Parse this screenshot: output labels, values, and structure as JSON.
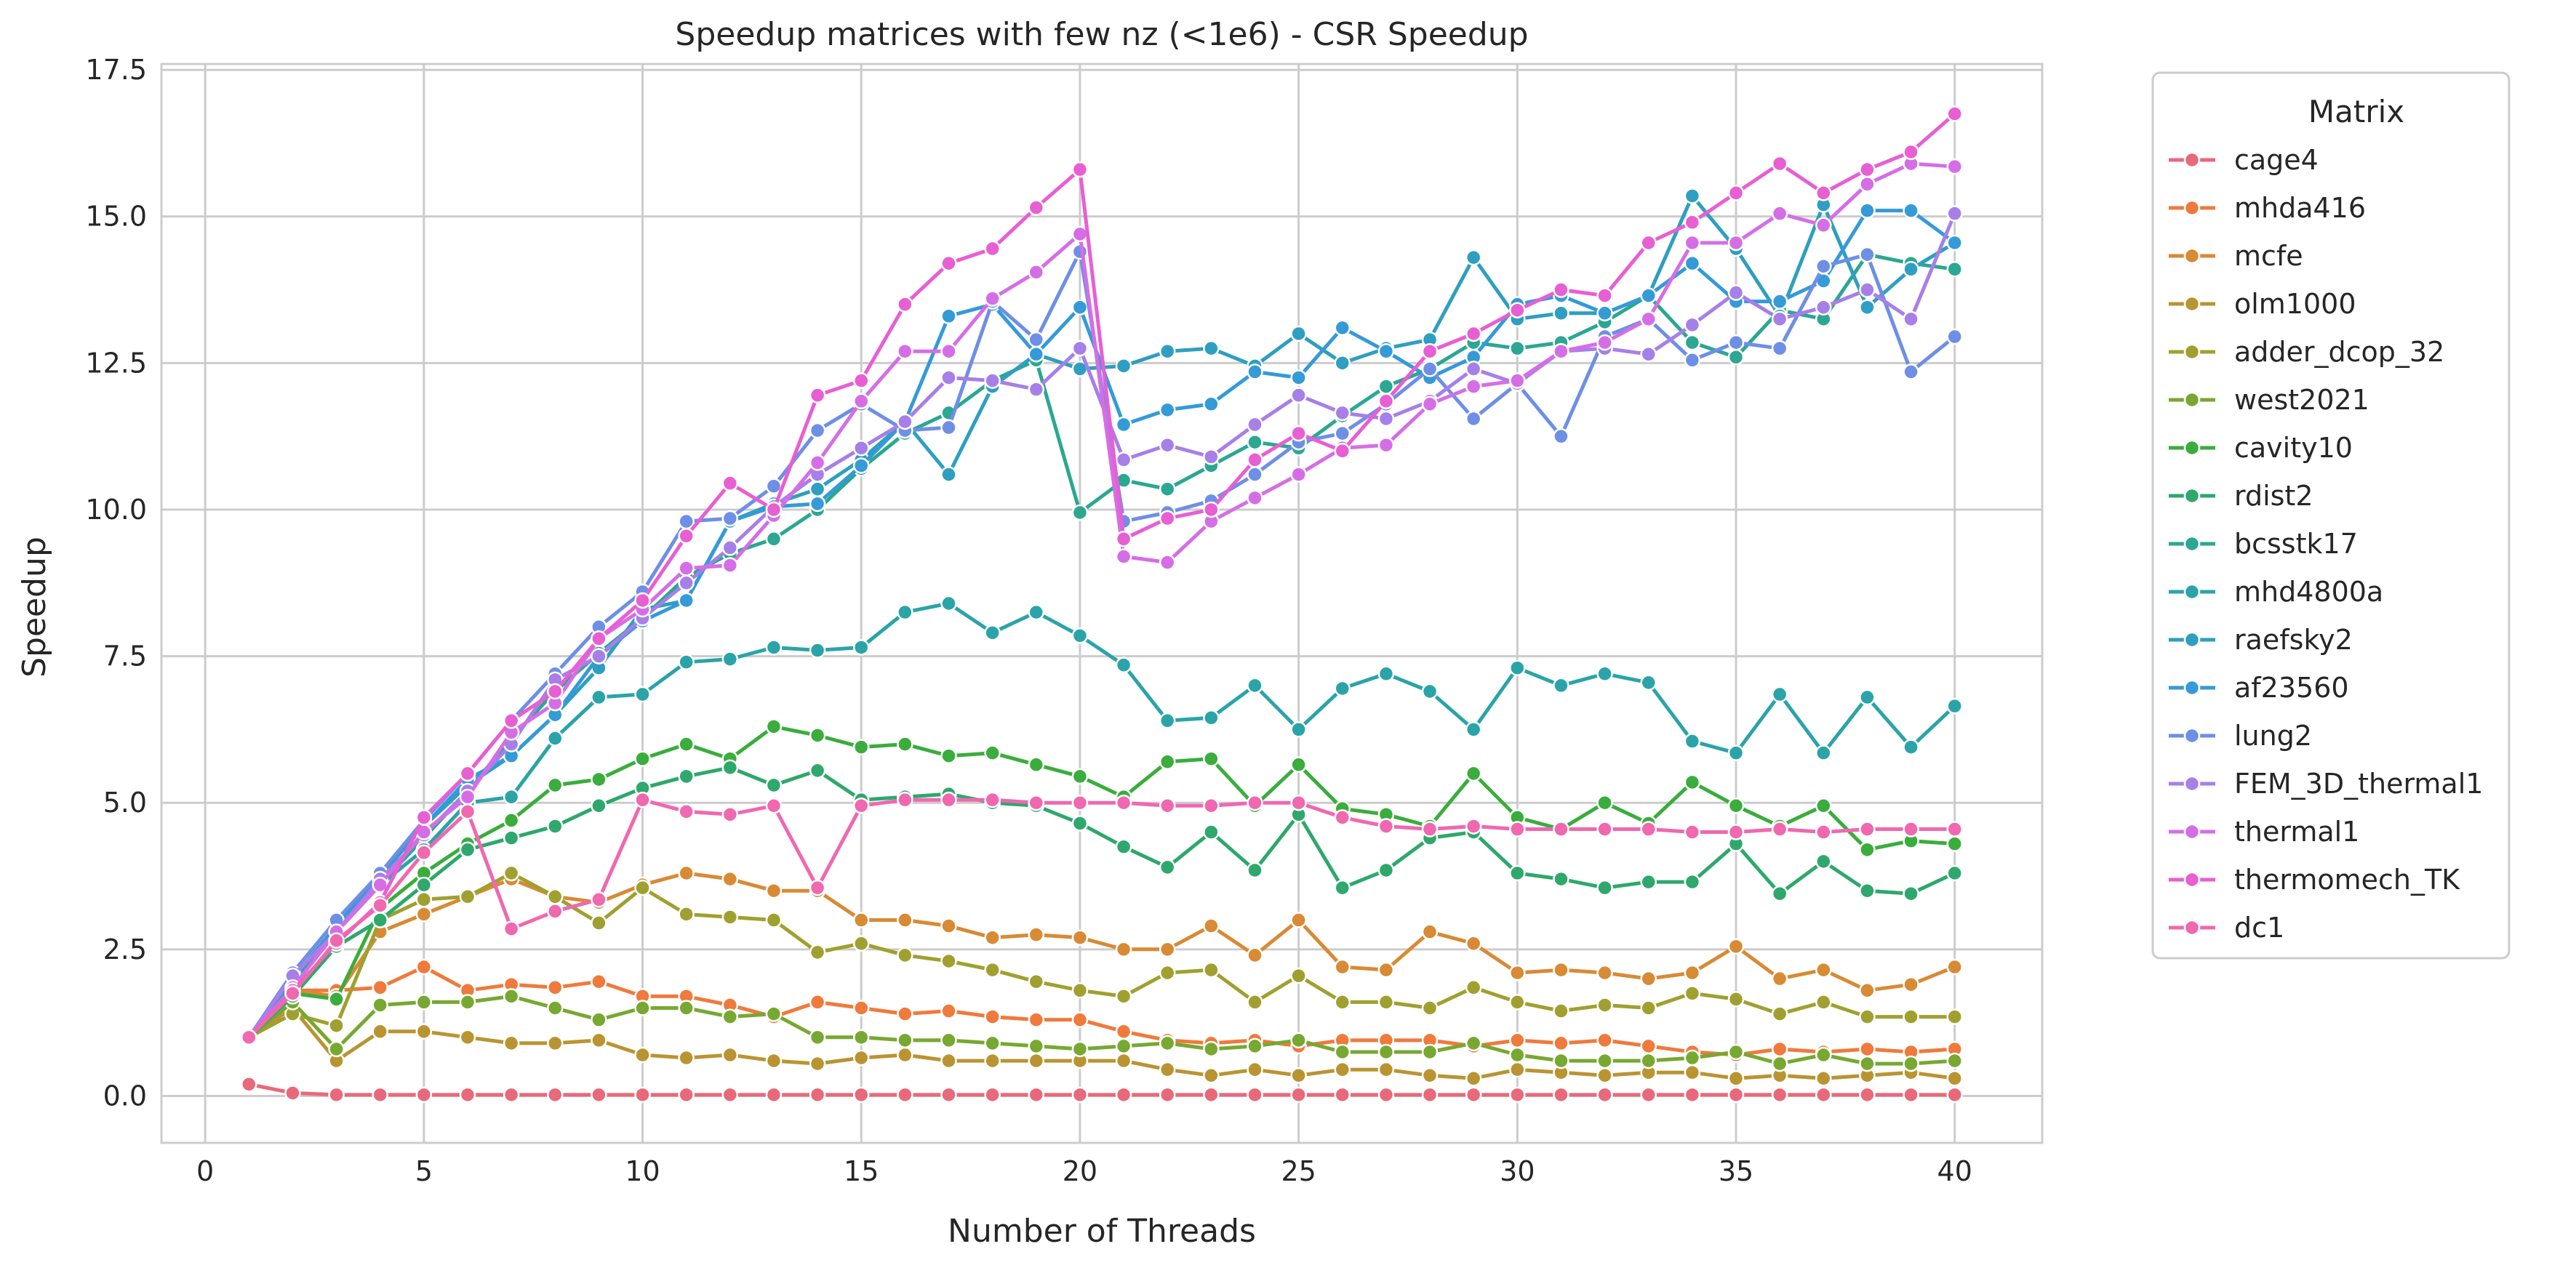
{
  "chart_data": {
    "type": "line",
    "title": "Speedup matrices with few nz (<1e6)  - CSR Speedup",
    "xlabel": "Number of Threads",
    "ylabel": "Speedup",
    "xlim": [
      -1.0,
      42.0
    ],
    "ylim": [
      -0.8,
      17.6
    ],
    "xticks": [
      0,
      5,
      10,
      15,
      20,
      25,
      30,
      35,
      40
    ],
    "xtick_labels": [
      "0",
      "5",
      "10",
      "15",
      "20",
      "25",
      "30",
      "35",
      "40"
    ],
    "yticks": [
      0,
      2.5,
      5,
      7.5,
      10,
      12.5,
      15,
      17.5
    ],
    "ytick_labels": [
      "0.0",
      "2.5",
      "5.0",
      "7.5",
      "10.0",
      "12.5",
      "15.0",
      "17.5"
    ],
    "grid": true,
    "legend": {
      "title": "Matrix",
      "placement": "outside-right"
    },
    "x": [
      1,
      2,
      3,
      4,
      5,
      6,
      7,
      8,
      9,
      10,
      11,
      12,
      13,
      14,
      15,
      16,
      17,
      18,
      19,
      20,
      21,
      22,
      23,
      24,
      25,
      26,
      27,
      28,
      29,
      30,
      31,
      32,
      33,
      34,
      35,
      36,
      37,
      38,
      39,
      40
    ],
    "series": [
      {
        "name": "cage4",
        "color": "#e8697a",
        "values": [
          0.2,
          0.05,
          0.02,
          0.02,
          0.02,
          0.02,
          0.02,
          0.02,
          0.02,
          0.02,
          0.02,
          0.02,
          0.02,
          0.02,
          0.02,
          0.02,
          0.02,
          0.02,
          0.02,
          0.02,
          0.02,
          0.02,
          0.02,
          0.02,
          0.02,
          0.02,
          0.02,
          0.02,
          0.02,
          0.02,
          0.02,
          0.02,
          0.02,
          0.02,
          0.02,
          0.02,
          0.02,
          0.02,
          0.02,
          0.02
        ]
      },
      {
        "name": "mhda416",
        "color": "#ef7a3c",
        "values": [
          1.0,
          1.8,
          1.8,
          1.85,
          2.2,
          1.8,
          1.9,
          1.85,
          1.95,
          1.7,
          1.7,
          1.55,
          1.35,
          1.6,
          1.5,
          1.4,
          1.45,
          1.35,
          1.3,
          1.3,
          1.1,
          0.95,
          0.9,
          0.95,
          0.85,
          0.95,
          0.95,
          0.95,
          0.85,
          0.95,
          0.9,
          0.95,
          0.85,
          0.75,
          0.7,
          0.8,
          0.75,
          0.8,
          0.75,
          0.8
        ]
      },
      {
        "name": "mcfe",
        "color": "#d88a34",
        "values": [
          1.0,
          1.8,
          1.7,
          2.8,
          3.1,
          3.4,
          3.7,
          3.4,
          3.3,
          3.6,
          3.8,
          3.7,
          3.5,
          3.5,
          3.0,
          3.0,
          2.9,
          2.7,
          2.75,
          2.7,
          2.5,
          2.5,
          2.9,
          2.4,
          3.0,
          2.2,
          2.15,
          2.8,
          2.6,
          2.1,
          2.15,
          2.1,
          2.0,
          2.1,
          2.55,
          2.0,
          2.15,
          1.8,
          1.9,
          2.2
        ]
      },
      {
        "name": "olm1000",
        "color": "#b99431",
        "values": [
          1.0,
          1.5,
          0.6,
          1.1,
          1.1,
          1.0,
          0.9,
          0.9,
          0.95,
          0.7,
          0.65,
          0.7,
          0.6,
          0.55,
          0.65,
          0.7,
          0.6,
          0.6,
          0.6,
          0.6,
          0.6,
          0.45,
          0.35,
          0.45,
          0.35,
          0.45,
          0.45,
          0.35,
          0.3,
          0.45,
          0.4,
          0.35,
          0.4,
          0.4,
          0.3,
          0.35,
          0.3,
          0.35,
          0.4,
          0.3
        ]
      },
      {
        "name": "adder_dcop_32",
        "color": "#a0a030",
        "values": [
          1.0,
          1.4,
          1.2,
          3.0,
          3.35,
          3.4,
          3.8,
          3.4,
          2.95,
          3.55,
          3.1,
          3.05,
          3.0,
          2.45,
          2.6,
          2.4,
          2.3,
          2.15,
          1.95,
          1.8,
          1.7,
          2.1,
          2.15,
          1.6,
          2.05,
          1.6,
          1.6,
          1.5,
          1.85,
          1.6,
          1.45,
          1.55,
          1.5,
          1.75,
          1.65,
          1.4,
          1.6,
          1.35,
          1.35,
          1.35
        ]
      },
      {
        "name": "west2021",
        "color": "#77a831",
        "values": [
          1.0,
          1.6,
          0.8,
          1.55,
          1.6,
          1.6,
          1.7,
          1.5,
          1.3,
          1.5,
          1.5,
          1.35,
          1.4,
          1.0,
          1.0,
          0.95,
          0.95,
          0.9,
          0.85,
          0.8,
          0.85,
          0.9,
          0.8,
          0.85,
          0.95,
          0.75,
          0.75,
          0.75,
          0.9,
          0.7,
          0.6,
          0.6,
          0.6,
          0.65,
          0.75,
          0.55,
          0.7,
          0.55,
          0.55,
          0.6
        ]
      },
      {
        "name": "cavity10",
        "color": "#3aad3d",
        "values": [
          1.0,
          1.75,
          1.65,
          3.2,
          3.8,
          4.3,
          4.7,
          5.3,
          5.4,
          5.75,
          6.0,
          5.75,
          6.3,
          6.15,
          5.95,
          6.0,
          5.8,
          5.85,
          5.65,
          5.45,
          5.1,
          5.7,
          5.75,
          4.95,
          5.65,
          4.9,
          4.8,
          4.6,
          5.5,
          4.75,
          4.55,
          5.0,
          4.65,
          5.35,
          4.95,
          4.6,
          4.95,
          4.2,
          4.35,
          4.3
        ]
      },
      {
        "name": "rdist2",
        "color": "#2ea86c",
        "values": [
          1.0,
          1.7,
          2.55,
          3.0,
          3.6,
          4.2,
          4.4,
          4.6,
          4.95,
          5.25,
          5.45,
          5.6,
          5.3,
          5.55,
          5.05,
          5.1,
          5.15,
          5.0,
          4.95,
          4.65,
          4.25,
          3.9,
          4.5,
          3.85,
          4.8,
          3.55,
          3.85,
          4.4,
          4.5,
          3.8,
          3.7,
          3.55,
          3.65,
          3.65,
          4.3,
          3.45,
          4.0,
          3.5,
          3.45,
          3.8
        ]
      },
      {
        "name": "bcsstk17",
        "color": "#2ba792",
        "values": [
          1.0,
          1.9,
          2.8,
          3.6,
          4.4,
          5.2,
          6.1,
          6.9,
          7.55,
          8.15,
          8.85,
          9.25,
          9.5,
          10.0,
          10.7,
          11.3,
          11.65,
          12.2,
          12.55,
          9.95,
          10.5,
          10.35,
          10.75,
          11.15,
          11.05,
          11.6,
          12.1,
          12.4,
          12.85,
          12.75,
          12.85,
          13.2,
          13.65,
          12.85,
          12.6,
          13.4,
          13.25,
          14.35,
          14.2,
          14.1
        ]
      },
      {
        "name": "mhd4800a",
        "color": "#2aa4a8",
        "values": [
          1.0,
          2.0,
          2.8,
          3.6,
          4.2,
          5.0,
          5.1,
          6.1,
          6.8,
          6.85,
          7.4,
          7.45,
          7.65,
          7.6,
          7.65,
          8.25,
          8.4,
          7.9,
          8.25,
          7.85,
          7.35,
          6.4,
          6.45,
          7.0,
          6.25,
          6.95,
          7.2,
          6.9,
          6.25,
          7.3,
          7.0,
          7.2,
          7.05,
          6.05,
          5.85,
          6.85,
          5.85,
          6.8,
          5.95,
          6.65
        ]
      },
      {
        "name": "raefsky2",
        "color": "#2e9fc0",
        "values": [
          1.0,
          2.0,
          2.85,
          3.75,
          4.6,
          5.3,
          5.8,
          6.5,
          7.3,
          8.3,
          8.45,
          9.8,
          10.1,
          10.35,
          10.85,
          11.5,
          10.6,
          12.1,
          12.65,
          12.4,
          12.45,
          12.7,
          12.75,
          12.45,
          13.0,
          12.5,
          12.75,
          12.9,
          14.3,
          13.25,
          13.35,
          13.35,
          13.65,
          15.35,
          14.45,
          13.3,
          15.2,
          13.45,
          14.1,
          14.55
        ]
      },
      {
        "name": "af23560",
        "color": "#359ad8",
        "values": [
          1.0,
          2.0,
          2.9,
          3.8,
          4.6,
          5.4,
          5.8,
          6.5,
          7.5,
          8.1,
          8.45,
          9.8,
          10.05,
          10.1,
          10.75,
          11.5,
          13.3,
          13.5,
          12.65,
          13.45,
          11.45,
          11.7,
          11.8,
          12.35,
          12.25,
          13.1,
          12.7,
          12.25,
          12.6,
          13.5,
          13.65,
          13.35,
          13.65,
          14.2,
          13.55,
          13.55,
          13.9,
          15.1,
          15.1,
          14.55
        ]
      },
      {
        "name": "lung2",
        "color": "#6e8fe6",
        "values": [
          1.0,
          2.1,
          3.0,
          3.8,
          4.7,
          5.5,
          6.4,
          7.2,
          8.0,
          8.6,
          9.8,
          9.85,
          10.4,
          11.35,
          11.8,
          11.35,
          11.4,
          13.55,
          12.9,
          14.4,
          9.8,
          9.95,
          10.15,
          10.6,
          11.15,
          11.3,
          11.8,
          12.4,
          11.55,
          12.15,
          11.25,
          12.95,
          13.25,
          12.55,
          12.85,
          12.75,
          14.15,
          14.35,
          12.35,
          12.95
        ]
      },
      {
        "name": "FEM_3D_thermal1",
        "color": "#a77fe8",
        "values": [
          1.0,
          2.05,
          2.8,
          3.7,
          4.45,
          5.2,
          6.0,
          7.1,
          7.5,
          8.15,
          8.75,
          9.35,
          10.05,
          10.6,
          11.05,
          11.5,
          12.25,
          12.2,
          12.05,
          12.75,
          10.85,
          11.1,
          10.9,
          11.45,
          11.95,
          11.65,
          11.55,
          11.85,
          12.4,
          12.15,
          12.7,
          12.75,
          12.65,
          13.15,
          13.7,
          13.25,
          13.45,
          13.75,
          13.25,
          15.05
        ]
      },
      {
        "name": "thermal1",
        "color": "#d56ee6",
        "values": [
          1.0,
          1.85,
          2.8,
          3.6,
          4.5,
          5.1,
          6.2,
          6.7,
          7.8,
          8.3,
          9.0,
          9.05,
          9.9,
          10.8,
          11.85,
          12.7,
          12.7,
          13.6,
          14.05,
          14.7,
          9.2,
          9.1,
          9.8,
          10.2,
          10.6,
          11.05,
          11.1,
          11.8,
          12.1,
          12.2,
          12.7,
          12.85,
          13.25,
          14.55,
          14.55,
          15.05,
          14.85,
          15.55,
          15.9,
          15.85
        ]
      },
      {
        "name": "thermomech_TK",
        "color": "#e75fd3",
        "values": [
          1.0,
          1.8,
          2.6,
          3.3,
          4.75,
          5.5,
          6.4,
          6.9,
          7.8,
          8.45,
          9.55,
          10.45,
          10.0,
          11.95,
          12.2,
          13.5,
          14.2,
          14.45,
          15.15,
          15.8,
          9.5,
          9.85,
          10.0,
          10.85,
          11.3,
          11.0,
          11.85,
          12.7,
          13.0,
          13.4,
          13.75,
          13.65,
          14.55,
          14.9,
          15.4,
          15.9,
          15.4,
          15.8,
          16.1,
          16.75
        ]
      },
      {
        "name": "dc1",
        "color": "#ef68b0",
        "values": [
          1.0,
          1.75,
          2.65,
          3.25,
          4.15,
          4.85,
          2.85,
          3.15,
          3.35,
          5.05,
          4.85,
          4.8,
          4.95,
          3.55,
          4.95,
          5.05,
          5.05,
          5.05,
          5.0,
          5.0,
          5.0,
          4.95,
          4.95,
          5.0,
          5.0,
          4.75,
          4.6,
          4.55,
          4.6,
          4.55,
          4.55,
          4.55,
          4.55,
          4.5,
          4.5,
          4.55,
          4.5,
          4.55,
          4.55,
          4.55
        ]
      }
    ]
  }
}
